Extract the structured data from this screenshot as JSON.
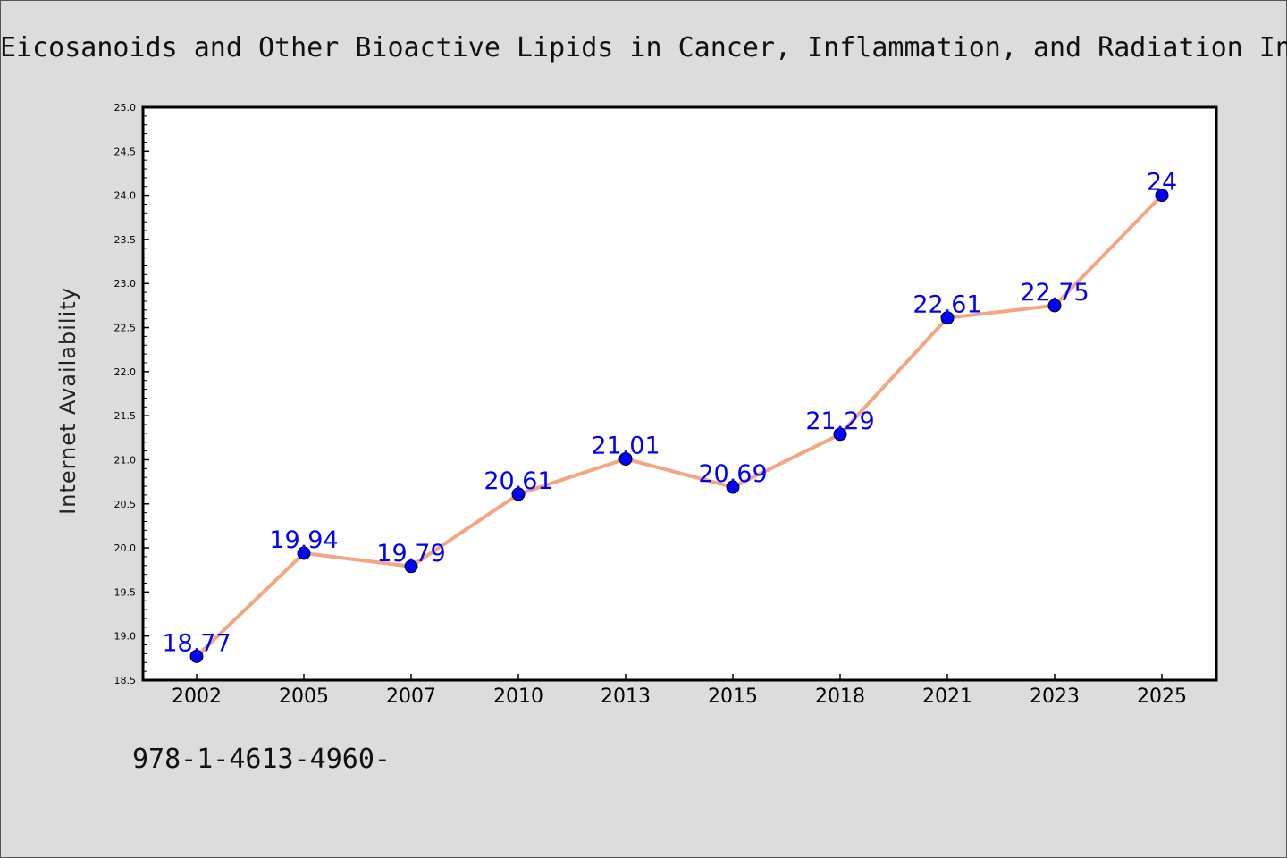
{
  "chart_data": {
    "type": "line",
    "title": "Eicosanoids and Other Bioactive Lipids in Cancer, Inflammation, and Radiation In",
    "xlabel": "",
    "ylabel": "Internet Availability",
    "categories": [
      "2002",
      "2005",
      "2007",
      "2010",
      "2013",
      "2015",
      "2018",
      "2021",
      "2023",
      "2025"
    ],
    "series": [
      {
        "values": [
          18.77,
          19.94,
          19.79,
          20.61,
          21.01,
          20.69,
          21.29,
          22.61,
          22.75,
          24
        ],
        "data_labels": [
          "18.77",
          "19.94",
          "19.79",
          "20.61",
          "21.01",
          "20.69",
          "21.29",
          "22.61",
          "22.75",
          "24"
        ],
        "line_color": "#f4a582",
        "marker_color": "#0000ff",
        "label_color": "#0000ff"
      }
    ],
    "ylim": [
      18.5,
      25.0
    ],
    "yticks": [
      "18.5",
      "19.0",
      "19.5",
      "20.0",
      "20.5",
      "21.0",
      "21.5",
      "22.0",
      "22.5",
      "23.0",
      "23.5",
      "24.0",
      "24.5",
      "25.0"
    ],
    "grid": false,
    "legend": "none"
  },
  "footer": {
    "text": "978-1-4613-4960-"
  }
}
